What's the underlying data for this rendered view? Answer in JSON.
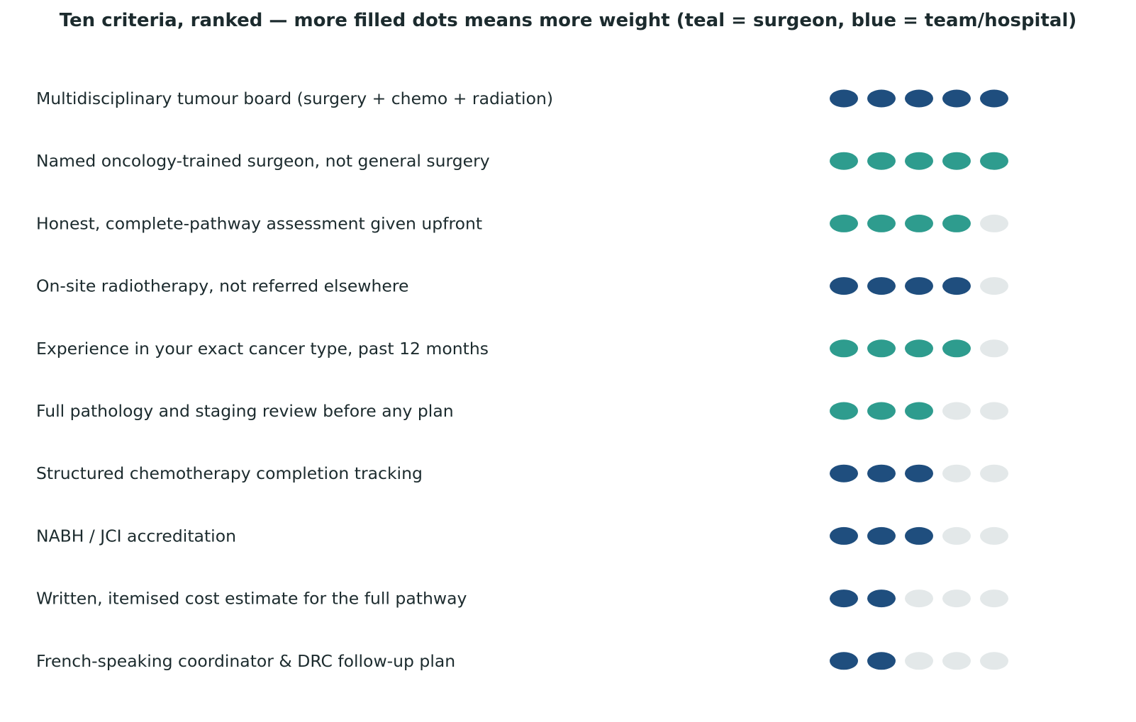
{
  "chart_data": {
    "type": "dot-rating",
    "title": "Ten criteria, ranked — more filled dots means more weight (teal = surgeon, blue = team/hospital)",
    "max_score": 5,
    "colors": {
      "surgeon": "#2e9c8e",
      "team_hospital": "#1f4e7e",
      "empty": "#e3e8e9",
      "text": "#1c2b2e"
    },
    "items": [
      {
        "label": "Multidisciplinary tumour board (surgery + chemo + radiation)",
        "score": 5,
        "group": "team_hospital"
      },
      {
        "label": "Named oncology-trained surgeon, not general surgery",
        "score": 5,
        "group": "surgeon"
      },
      {
        "label": "Honest, complete-pathway assessment given upfront",
        "score": 4,
        "group": "surgeon"
      },
      {
        "label": "On-site radiotherapy, not referred elsewhere",
        "score": 4,
        "group": "team_hospital"
      },
      {
        "label": "Experience in your exact cancer type, past 12 months",
        "score": 4,
        "group": "surgeon"
      },
      {
        "label": "Full pathology and staging review before any plan",
        "score": 3,
        "group": "surgeon"
      },
      {
        "label": "Structured chemotherapy completion tracking",
        "score": 3,
        "group": "team_hospital"
      },
      {
        "label": "NABH / JCI accreditation",
        "score": 3,
        "group": "team_hospital"
      },
      {
        "label": "Written, itemised cost estimate for the full pathway",
        "score": 2,
        "group": "team_hospital"
      },
      {
        "label": "French-speaking coordinator & DRC follow-up plan",
        "score": 2,
        "group": "team_hospital"
      }
    ]
  }
}
